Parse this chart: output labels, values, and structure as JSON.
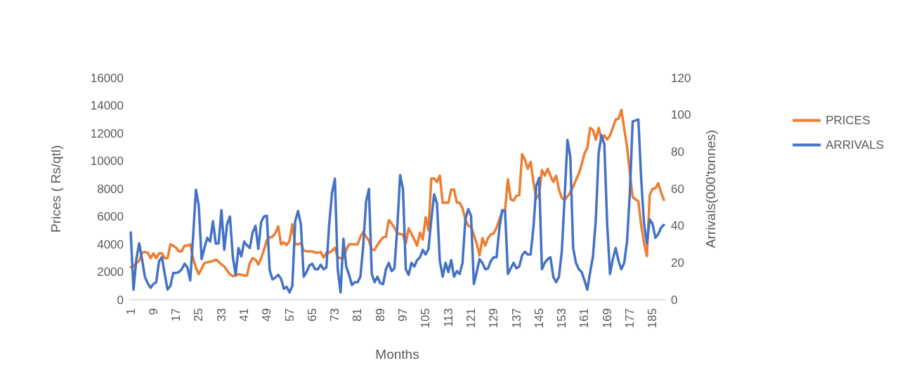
{
  "chart_data": {
    "type": "line",
    "xlabel": "Months",
    "ylabel": "Prices ( Rs/qtl)",
    "y2label": "Arrivals(000'tonnes)",
    "categories": [
      "1",
      null,
      null,
      null,
      null,
      null,
      null,
      null,
      "9",
      null,
      null,
      null,
      null,
      null,
      null,
      null,
      "17",
      null,
      null,
      null,
      null,
      null,
      null,
      null,
      "25",
      null,
      null,
      null,
      null,
      null,
      null,
      null,
      "33",
      null,
      null,
      null,
      null,
      null,
      null,
      null,
      "41",
      null,
      null,
      null,
      null,
      null,
      null,
      null,
      "49",
      null,
      null,
      null,
      null,
      null,
      null,
      null,
      "57",
      null,
      null,
      null,
      null,
      null,
      null,
      null,
      "65",
      null,
      null,
      null,
      null,
      null,
      null,
      null,
      "73",
      null,
      null,
      null,
      null,
      null,
      null,
      null,
      "81",
      null,
      null,
      null,
      null,
      null,
      null,
      null,
      "89",
      null,
      null,
      null,
      null,
      null,
      null,
      null,
      "97",
      null,
      null,
      null,
      null,
      null,
      null,
      null,
      "105",
      null,
      null,
      null,
      null,
      null,
      null,
      null,
      "113",
      null,
      null,
      null,
      null,
      null,
      null,
      null,
      "121",
      null,
      null,
      null,
      null,
      null,
      null,
      null,
      "129",
      null,
      null,
      null,
      null,
      null,
      null,
      null,
      "137",
      null,
      null,
      null,
      null,
      null,
      null,
      null,
      "145",
      null,
      null,
      null,
      null,
      null,
      null,
      null,
      "153",
      null,
      null,
      null,
      null,
      null,
      null,
      null,
      "161",
      null,
      null,
      null,
      null,
      null,
      null,
      null,
      "169",
      null,
      null,
      null,
      null,
      null,
      null,
      null,
      "177",
      null,
      null,
      null,
      null,
      null,
      null,
      null,
      "185",
      null,
      null,
      null,
      null
    ],
    "series": [
      {
        "name": "PRICES",
        "color": "#ed7d31",
        "values": [
          2350,
          2400,
          2650,
          2800,
          3400,
          3450,
          3400,
          3000,
          3350,
          3000,
          3350,
          3350,
          3000,
          3000,
          4000,
          3900,
          3750,
          3500,
          3500,
          3900,
          3900,
          4000,
          3000,
          2300,
          1850,
          2250,
          2650,
          2700,
          2750,
          2800,
          2900,
          2750,
          2550,
          2400,
          2100,
          1850,
          1700,
          1750,
          1850,
          1800,
          1750,
          1750,
          2650,
          3000,
          2900,
          2550,
          3000,
          3600,
          4300,
          4500,
          4550,
          4800,
          5300,
          4000,
          4150,
          3950,
          4250,
          5450,
          4000,
          4000,
          4100,
          3550,
          3500,
          3500,
          3500,
          3400,
          3400,
          3450,
          3050,
          3400,
          3400,
          3550,
          3750,
          3050,
          3000,
          3000,
          3600,
          4000,
          4000,
          4000,
          4000,
          4550,
          4900,
          4550,
          4250,
          3600,
          3600,
          3950,
          4250,
          4500,
          4550,
          5750,
          5500,
          5200,
          4800,
          4750,
          4700,
          4050,
          5150,
          4750,
          4350,
          3900,
          4850,
          4350,
          5950,
          5000,
          8750,
          8750,
          8500,
          8950,
          7000,
          7000,
          7000,
          7950,
          7950,
          7000,
          7000,
          6600,
          5800,
          5350,
          5250,
          4700,
          4050,
          3200,
          4450,
          3900,
          4450,
          4700,
          4800,
          5200,
          5800,
          6350,
          6450,
          8700,
          7250,
          7150,
          7500,
          7550,
          10500,
          10100,
          9450,
          9950,
          8500,
          7300,
          7600,
          9350,
          8950,
          9450,
          8950,
          8500,
          8950,
          7950,
          7350,
          7200,
          7450,
          7750,
          8150,
          8650,
          9100,
          9750,
          10550,
          10950,
          12400,
          12250,
          11550,
          12400,
          11550,
          11850,
          11550,
          11850,
          12400,
          13000,
          13050,
          13700,
          12350,
          11050,
          9150,
          7400,
          7250,
          7100,
          5350,
          4100,
          3150,
          7550,
          8000,
          8050,
          8400,
          7750,
          7200
        ]
      },
      {
        "name": "ARRIVALS",
        "color": "#4472c4",
        "axis": "y2",
        "values": [
          36.5,
          5.5,
          22,
          30.5,
          22,
          12.5,
          9,
          6.5,
          8.5,
          9.5,
          21,
          23,
          14,
          5.5,
          7.5,
          14.5,
          14.5,
          15,
          16.5,
          19.5,
          17.5,
          10.5,
          34,
          59.5,
          51,
          22,
          28,
          33.5,
          31.5,
          42.5,
          30.5,
          30.5,
          48.5,
          27,
          41,
          45,
          23.5,
          13.5,
          28,
          23.5,
          31.5,
          29.5,
          28,
          36.5,
          40,
          27.5,
          42,
          45,
          45.5,
          16,
          11,
          12,
          13.5,
          11.5,
          6,
          7,
          4,
          7.5,
          42.5,
          48,
          41,
          12.5,
          15,
          18.5,
          19.5,
          16.5,
          16.5,
          19,
          16.5,
          17.5,
          41,
          58,
          65.5,
          16.5,
          4,
          33,
          18,
          13.5,
          8,
          9.5,
          9.5,
          12.5,
          29.5,
          53,
          60,
          14,
          9.5,
          12.5,
          9,
          8.5,
          16.5,
          20,
          15.5,
          17,
          39,
          67.5,
          60,
          16.5,
          13.5,
          20,
          18,
          21.5,
          23,
          27,
          24.5,
          27.5,
          43.5,
          57,
          52,
          21,
          12.5,
          20,
          15,
          21.5,
          12.5,
          15.5,
          14,
          20,
          43.5,
          49,
          45.5,
          8.5,
          15,
          22,
          20,
          16.5,
          17,
          21,
          23,
          23,
          39,
          48.5,
          48,
          14,
          17,
          20,
          17,
          18,
          24,
          26,
          24.5,
          24.5,
          39,
          61.5,
          66,
          16.5,
          20,
          22,
          23,
          12.5,
          9.5,
          12.5,
          26,
          55.5,
          86.5,
          77.5,
          28,
          20,
          16.5,
          15,
          10.5,
          5.5,
          15,
          23.5,
          43.5,
          79.5,
          89,
          84,
          41,
          14,
          22,
          28,
          21,
          16.5,
          20,
          31.5,
          58,
          96.5,
          97,
          97.5,
          65,
          41,
          30.5,
          43.5,
          41,
          33.5,
          35.5,
          39,
          40.5
        ]
      }
    ],
    "ylim": [
      0,
      16000
    ],
    "yticks": [
      0,
      2000,
      4000,
      6000,
      8000,
      10000,
      12000,
      14000,
      16000
    ],
    "y2lim": [
      0,
      120
    ],
    "y2ticks": [
      0,
      20,
      40,
      60,
      80,
      100,
      120
    ],
    "grid": false,
    "legend": "right",
    "marker": "none",
    "line_style": "solid"
  }
}
